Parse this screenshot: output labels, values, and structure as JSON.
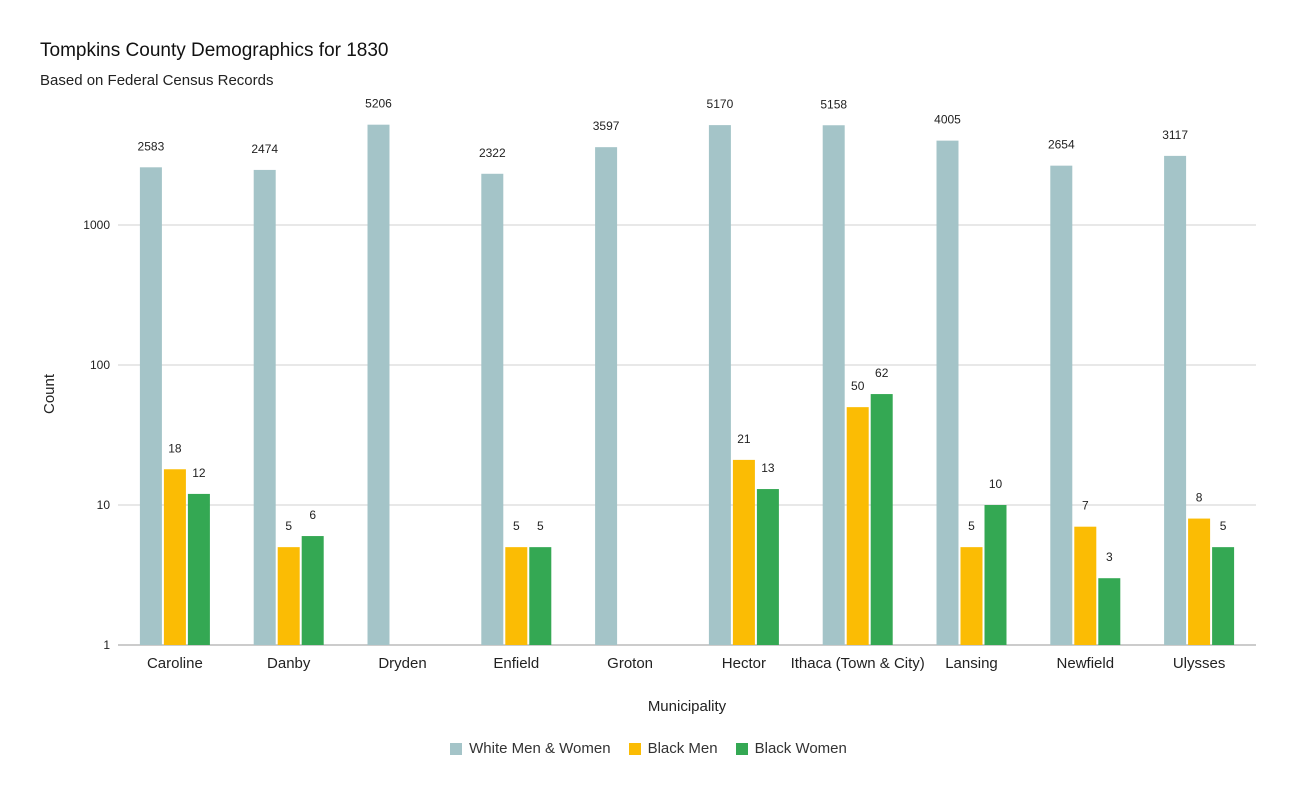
{
  "chart_data": {
    "type": "bar",
    "title": "Tompkins County Demographics for 1830",
    "subtitle": "Based on Federal Census Records",
    "xlabel": "Municipality",
    "ylabel": "Count",
    "yscale": "log",
    "ylim": [
      1,
      10000
    ],
    "yticks": [
      1,
      10,
      100,
      1000
    ],
    "ytick_labels": [
      "1",
      "10",
      "100",
      "1000"
    ],
    "grid": true,
    "legend_position": "bottom",
    "categories": [
      "Caroline",
      "Danby",
      "Dryden",
      "Enfield",
      "Groton",
      "Hector",
      "Ithaca (Town & City)",
      "Lansing",
      "Newfield",
      "Ulysses"
    ],
    "series": [
      {
        "name": "White Men & Women",
        "color": "#a4c4c8",
        "values": [
          2583,
          2474,
          5206,
          2322,
          3597,
          5170,
          5158,
          4005,
          2654,
          3117
        ]
      },
      {
        "name": "Black Men",
        "color": "#fbbc04",
        "values": [
          18,
          5,
          null,
          5,
          null,
          21,
          50,
          5,
          7,
          8
        ]
      },
      {
        "name": "Black Women",
        "color": "#34a853",
        "values": [
          12,
          6,
          null,
          5,
          null,
          13,
          62,
          10,
          3,
          5
        ]
      }
    ]
  }
}
